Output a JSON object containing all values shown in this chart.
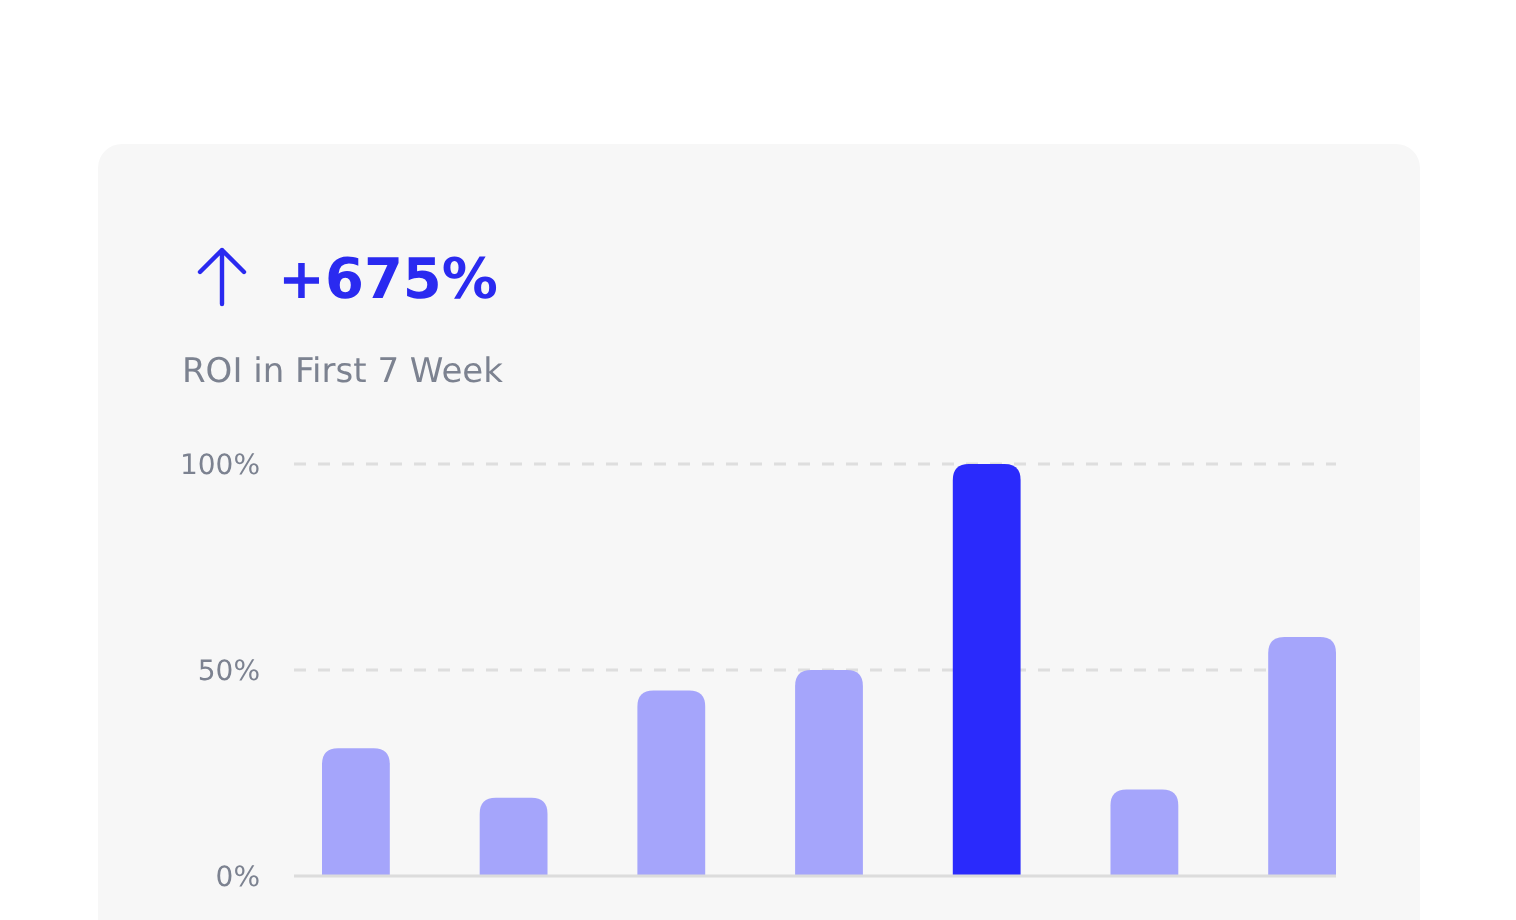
{
  "chart_data": {
    "type": "bar",
    "title": "+675%",
    "subtitle": "ROI in First 7 Week",
    "categories": [
      null,
      null,
      null,
      null,
      null,
      null,
      null
    ],
    "values": [
      31,
      19,
      45,
      50,
      100,
      21,
      58
    ],
    "colors": [
      "#a5a5fb",
      "#a5a5fb",
      "#a5a5fb",
      "#a5a5fb",
      "#2a2afc",
      "#a5a5fb",
      "#a5a5fb"
    ],
    "ylim": [
      0,
      100
    ],
    "yticks": [
      {
        "value": 0,
        "label": "0%"
      },
      {
        "value": 50,
        "label": "50%"
      },
      {
        "value": 100,
        "label": "100%"
      }
    ],
    "grid": "y",
    "tick_labels": "y"
  }
}
